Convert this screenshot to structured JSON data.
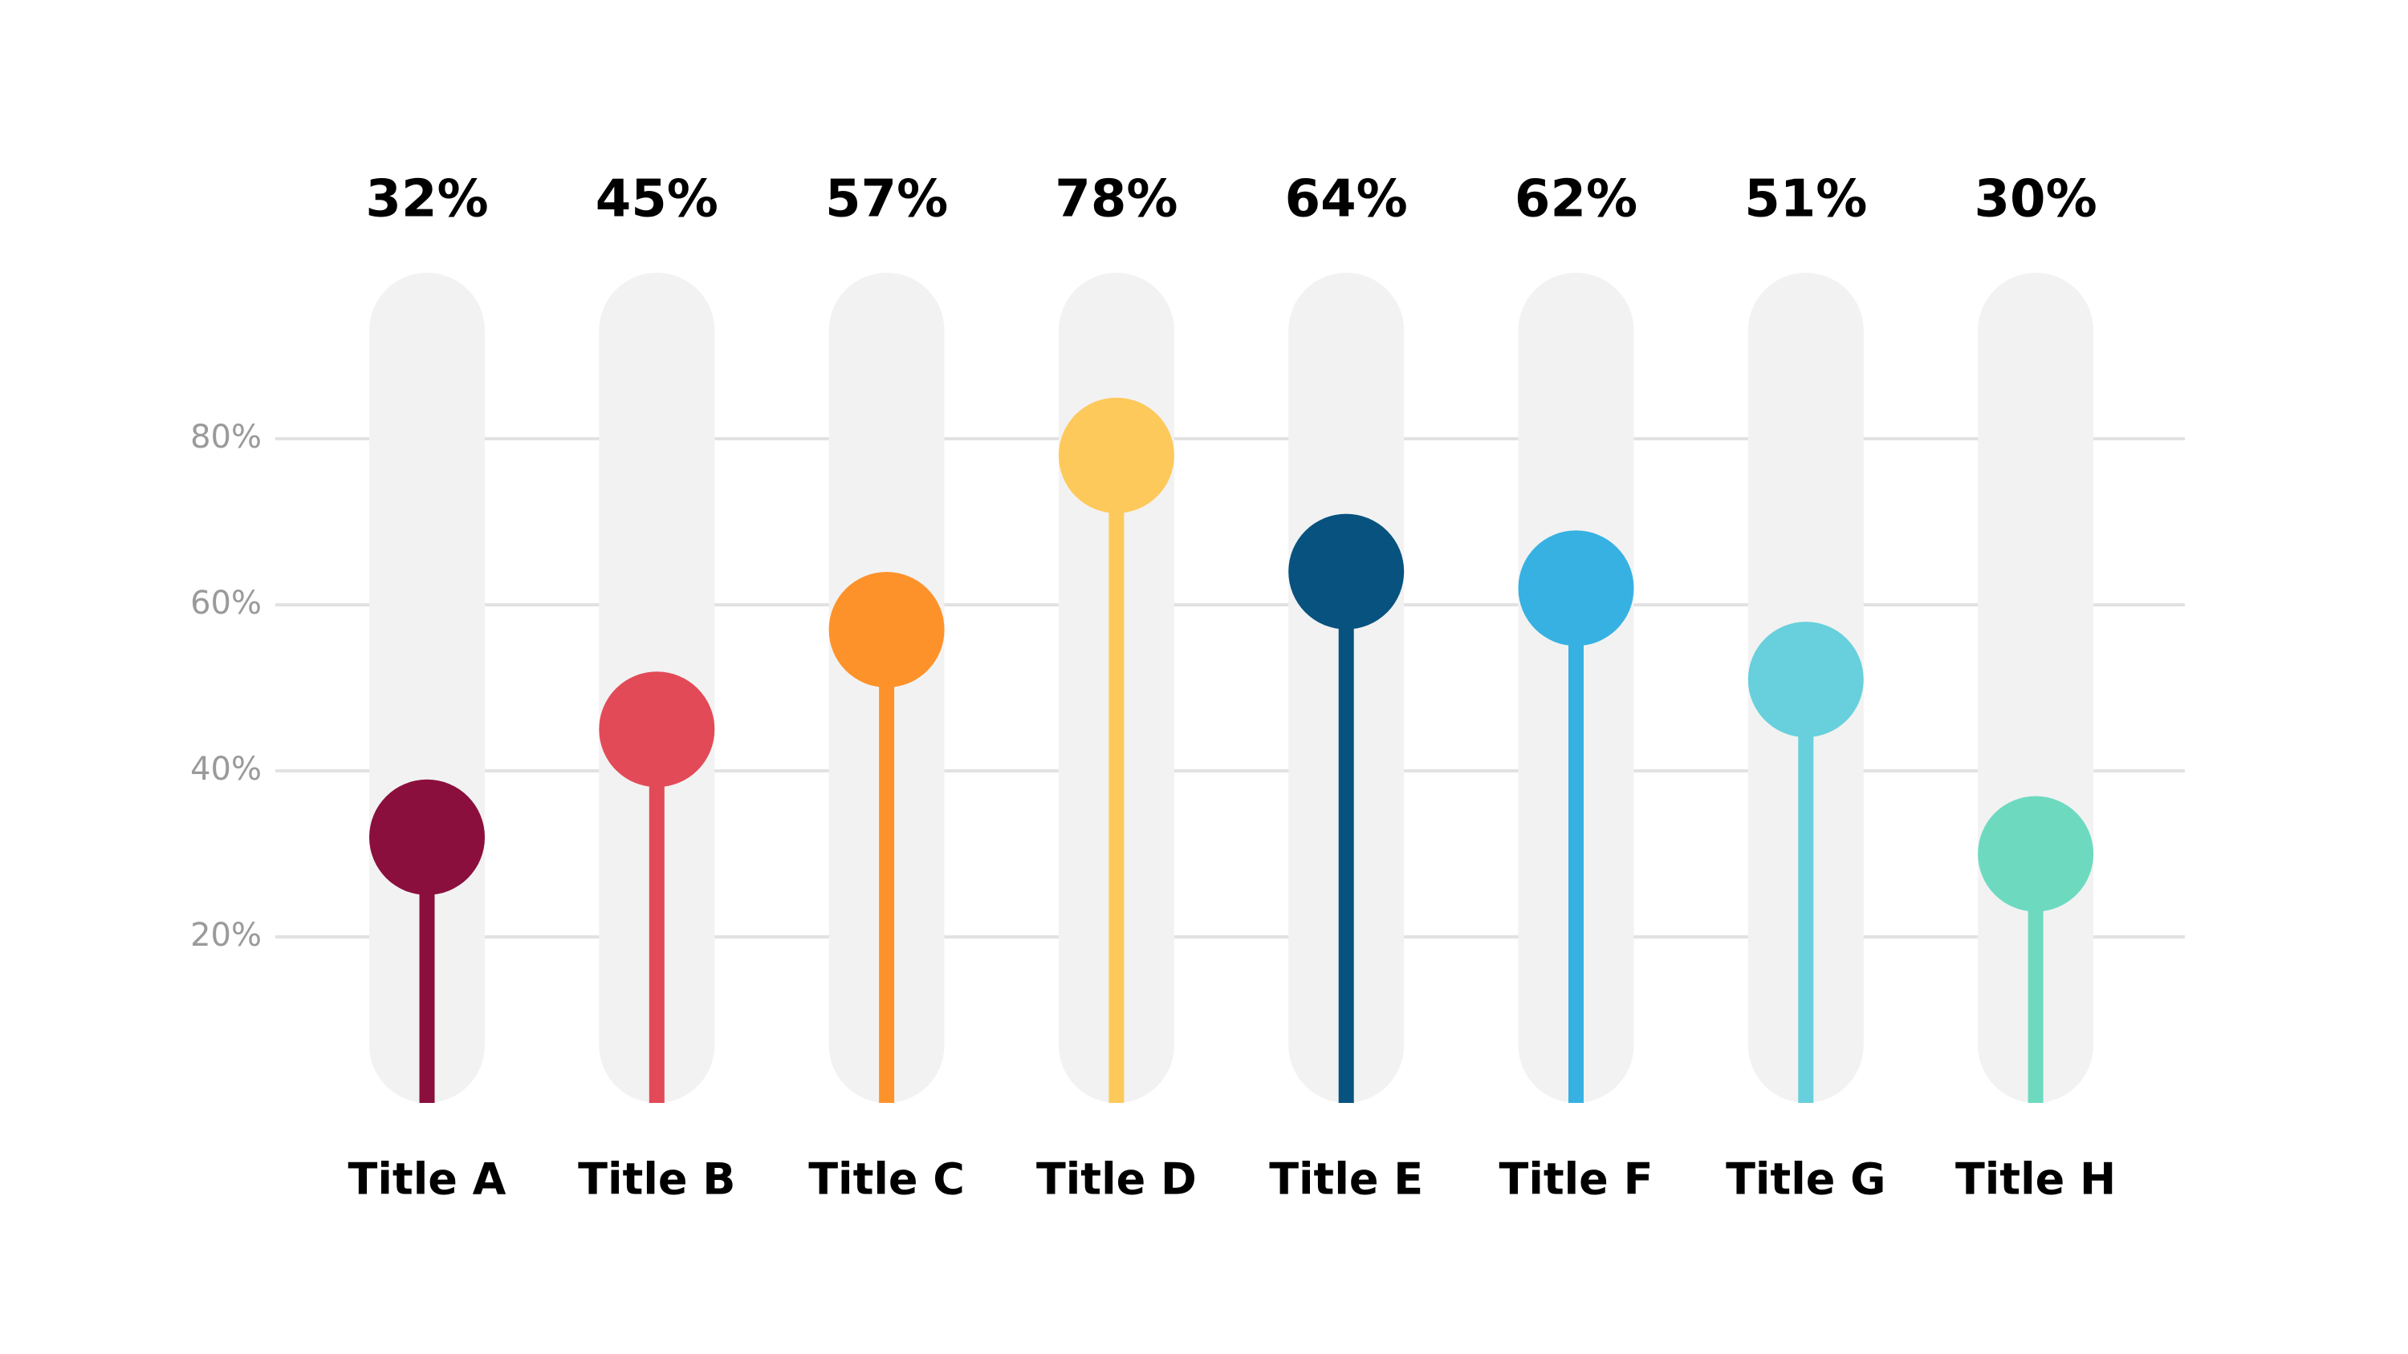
{
  "chart_data": {
    "type": "lollipop",
    "categories": [
      "Title A",
      "Title B",
      "Title C",
      "Title D",
      "Title E",
      "Title F",
      "Title G",
      "Title H"
    ],
    "values": [
      32,
      45,
      57,
      78,
      64,
      62,
      51,
      30
    ],
    "value_labels": [
      "32%",
      "45%",
      "57%",
      "78%",
      "64%",
      "62%",
      "51%",
      "30%"
    ],
    "colors": [
      "#8b0f3d",
      "#e24a57",
      "#fd922b",
      "#fec95b",
      "#08527f",
      "#36b1e2",
      "#67d0dc",
      "#6ddac0"
    ],
    "ylim": [
      0,
      100
    ],
    "yticks": [
      {
        "value": 20,
        "label": "20%"
      },
      {
        "value": 40,
        "label": "40%"
      },
      {
        "value": 60,
        "label": "60%"
      },
      {
        "value": 80,
        "label": "80%"
      }
    ],
    "grid": true
  }
}
